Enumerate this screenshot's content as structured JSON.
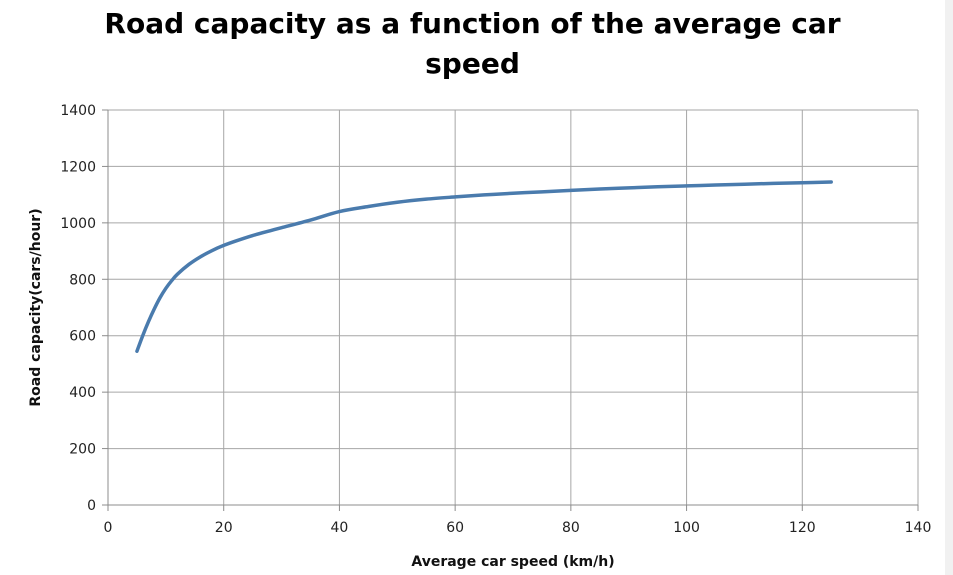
{
  "chart_data": {
    "type": "line",
    "title_lines": [
      "Road capacity as a function of the average car",
      "speed"
    ],
    "xlabel": "Average car speed (km/h)",
    "ylabel": "Road capacity(cars/hour)",
    "xlim": [
      0,
      140
    ],
    "ylim": [
      0,
      1400
    ],
    "xticks": [
      0,
      20,
      40,
      60,
      80,
      100,
      120,
      140
    ],
    "yticks": [
      0,
      200,
      400,
      600,
      800,
      1000,
      1200,
      1400
    ],
    "grid": true,
    "legend": "none",
    "line_color": "#4a7bad",
    "series": [
      {
        "x": [
          5,
          6,
          7,
          8,
          9,
          10,
          11,
          12,
          14,
          16,
          18,
          20,
          22,
          25,
          28,
          30,
          35,
          40,
          45,
          50,
          55,
          60,
          65,
          70,
          75,
          80,
          85,
          90,
          95,
          100,
          105,
          110,
          115,
          120,
          125
        ],
        "values": [
          545,
          600,
          650,
          695,
          735,
          768,
          795,
          818,
          853,
          880,
          902,
          920,
          935,
          955,
          972,
          983,
          1010,
          1040,
          1058,
          1073,
          1084,
          1092,
          1099,
          1105,
          1110,
          1115,
          1120,
          1124,
          1128,
          1131,
          1134,
          1137,
          1140,
          1142,
          1145
        ]
      }
    ]
  }
}
